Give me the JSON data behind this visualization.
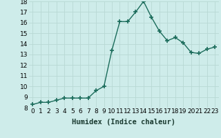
{
  "x": [
    0,
    1,
    2,
    3,
    4,
    5,
    6,
    7,
    8,
    9,
    10,
    11,
    12,
    13,
    14,
    15,
    16,
    17,
    18,
    19,
    20,
    21,
    22,
    23
  ],
  "y": [
    8.3,
    8.5,
    8.5,
    8.7,
    8.9,
    8.9,
    8.9,
    8.9,
    9.6,
    10.0,
    13.4,
    16.1,
    16.1,
    17.0,
    18.0,
    16.5,
    15.2,
    14.3,
    14.6,
    14.1,
    13.2,
    13.1,
    13.5,
    13.7
  ],
  "line_color": "#1a6b5a",
  "marker": "+",
  "marker_size": 4,
  "bg_color": "#ceecea",
  "grid_color": "#b8d8d4",
  "xlabel": "Humidex (Indice chaleur)",
  "xlim": [
    -0.5,
    23.5
  ],
  "ylim": [
    8,
    18
  ],
  "yticks": [
    8,
    9,
    10,
    11,
    12,
    13,
    14,
    15,
    16,
    17,
    18
  ],
  "xticks": [
    0,
    1,
    2,
    3,
    4,
    5,
    6,
    7,
    8,
    9,
    10,
    11,
    12,
    13,
    14,
    15,
    16,
    17,
    18,
    19,
    20,
    21,
    22,
    23
  ],
  "xlabel_fontsize": 7.5,
  "tick_fontsize": 6.5,
  "line_width": 1.0
}
